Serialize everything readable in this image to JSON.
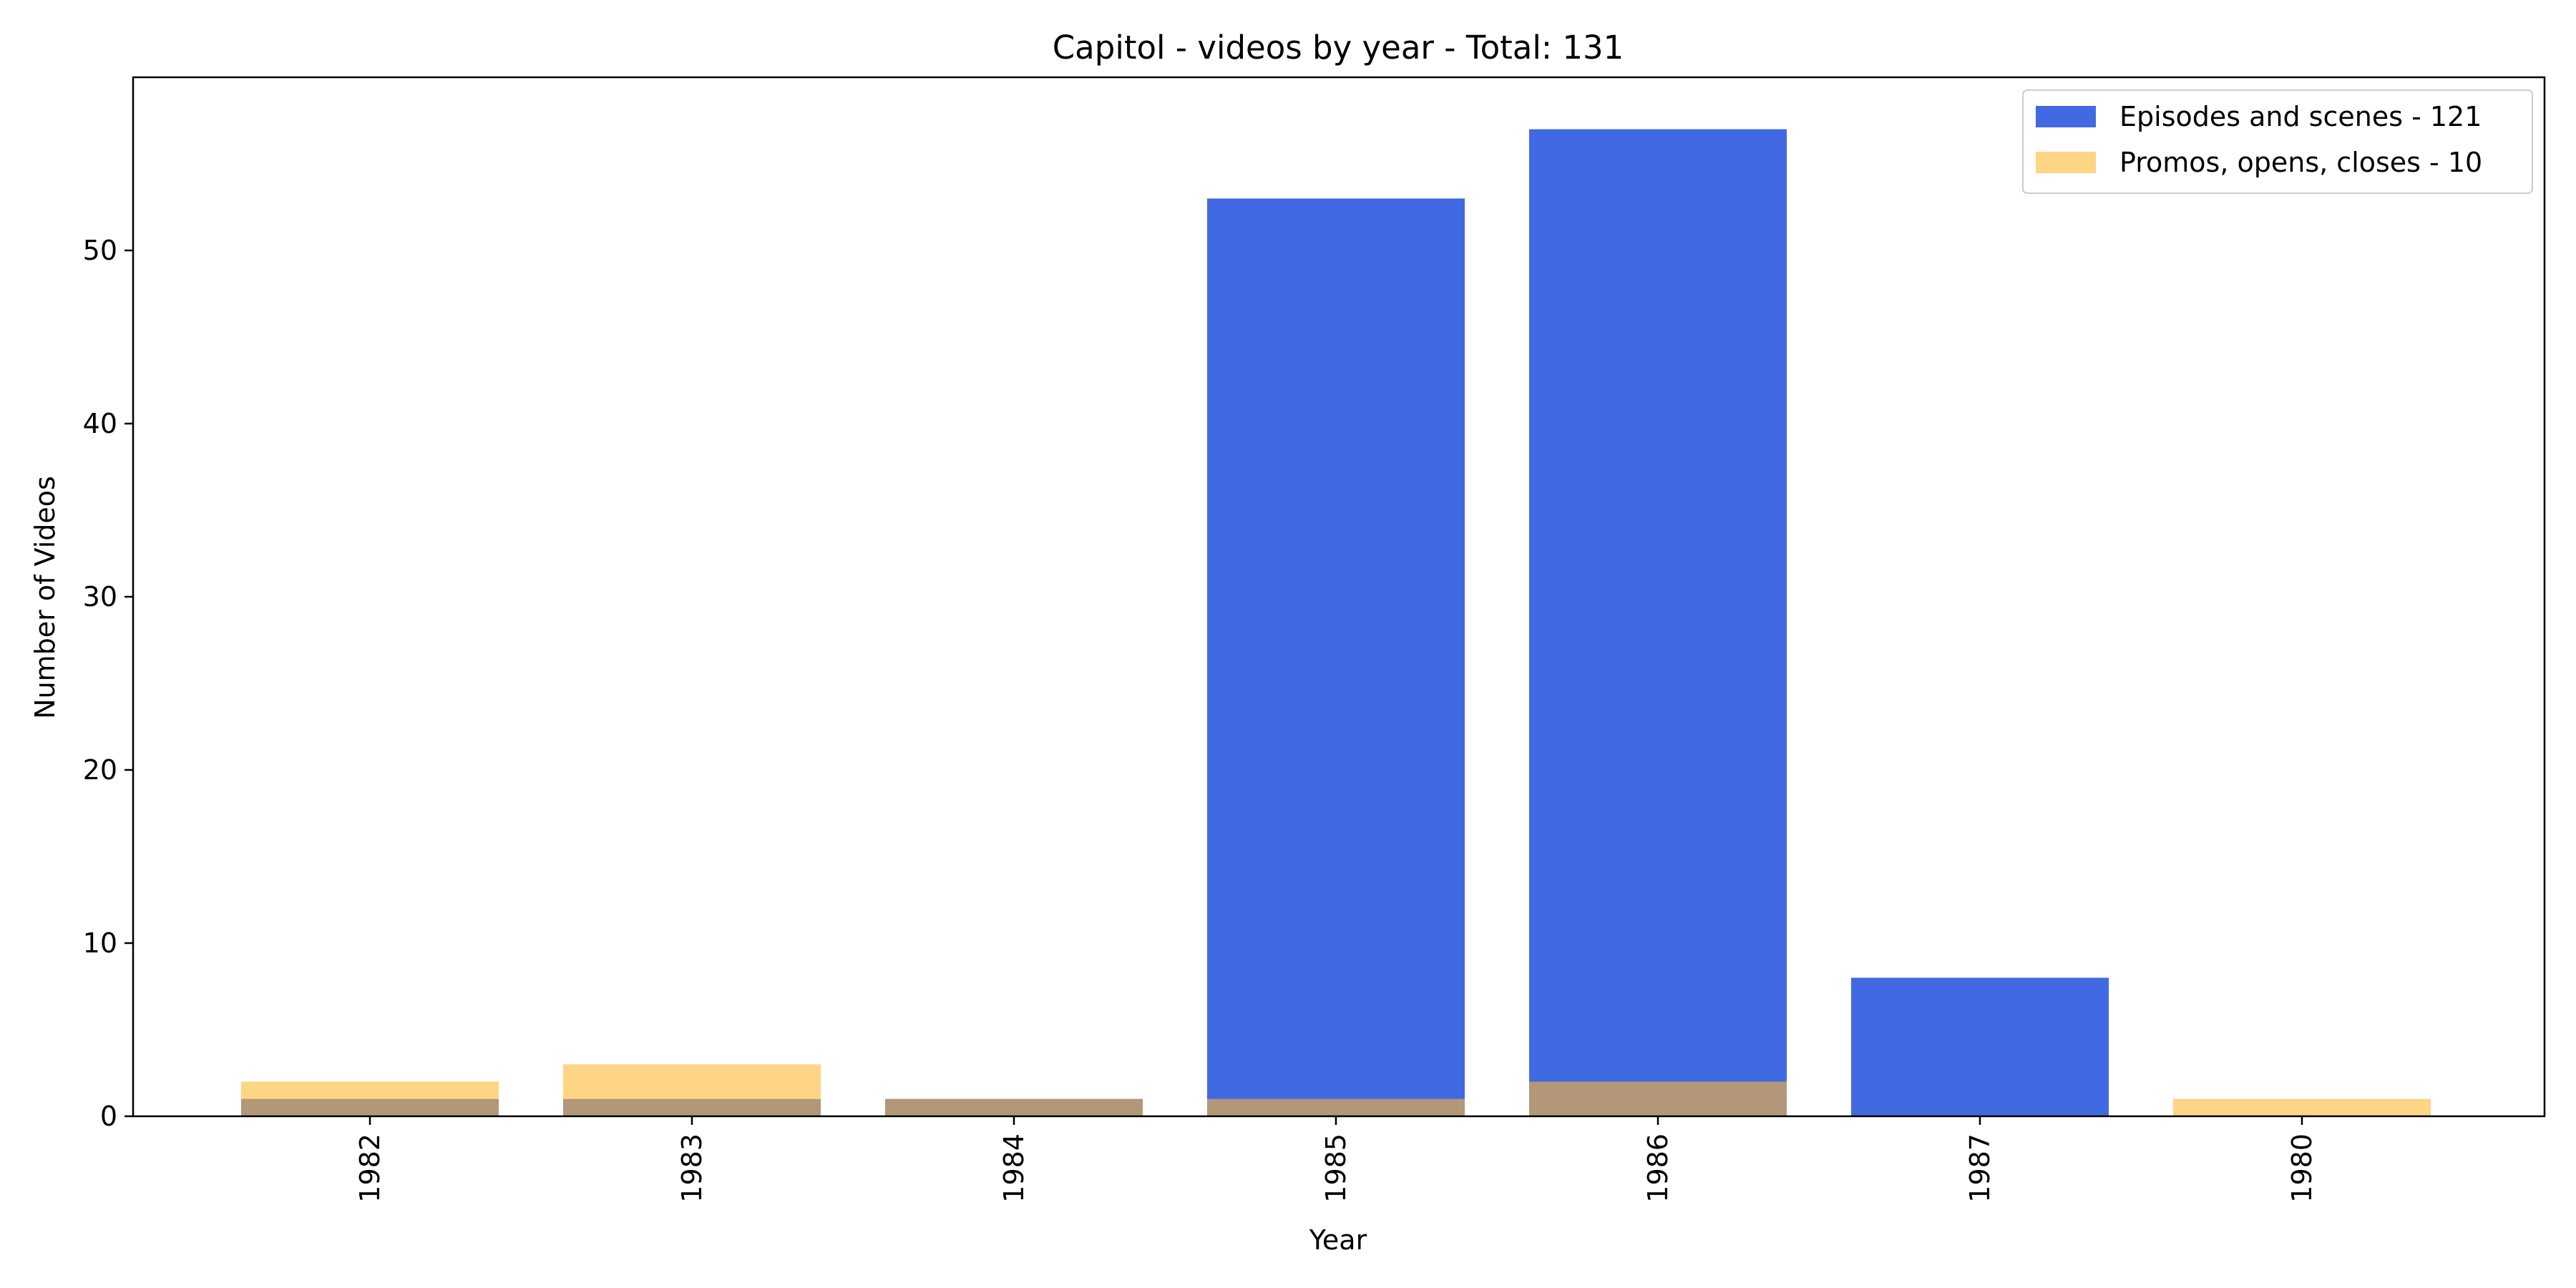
{
  "chart_data": {
    "type": "bar",
    "title": "Capitol - videos by year - Total: 131",
    "xlabel": "Year",
    "ylabel": "Number of Videos",
    "categories": [
      "1982",
      "1983",
      "1984",
      "1985",
      "1986",
      "1987",
      "1980"
    ],
    "ylim": [
      0,
      60
    ],
    "yticks": [
      0,
      10,
      20,
      30,
      40,
      50
    ],
    "grid": false,
    "legend_position": "top-right",
    "x_tick_rotation": "vertical",
    "bar_overlay": true,
    "series": [
      {
        "name": "Episodes and scenes - 121",
        "color": "#4169e1",
        "opacity": 1.0,
        "values": [
          1,
          1,
          1,
          53,
          57,
          8,
          0
        ]
      },
      {
        "name": "Promos, opens, closes - 10",
        "color": "#fdb833",
        "opacity": 0.6,
        "values": [
          2,
          3,
          1,
          1,
          2,
          0,
          1
        ]
      }
    ]
  }
}
